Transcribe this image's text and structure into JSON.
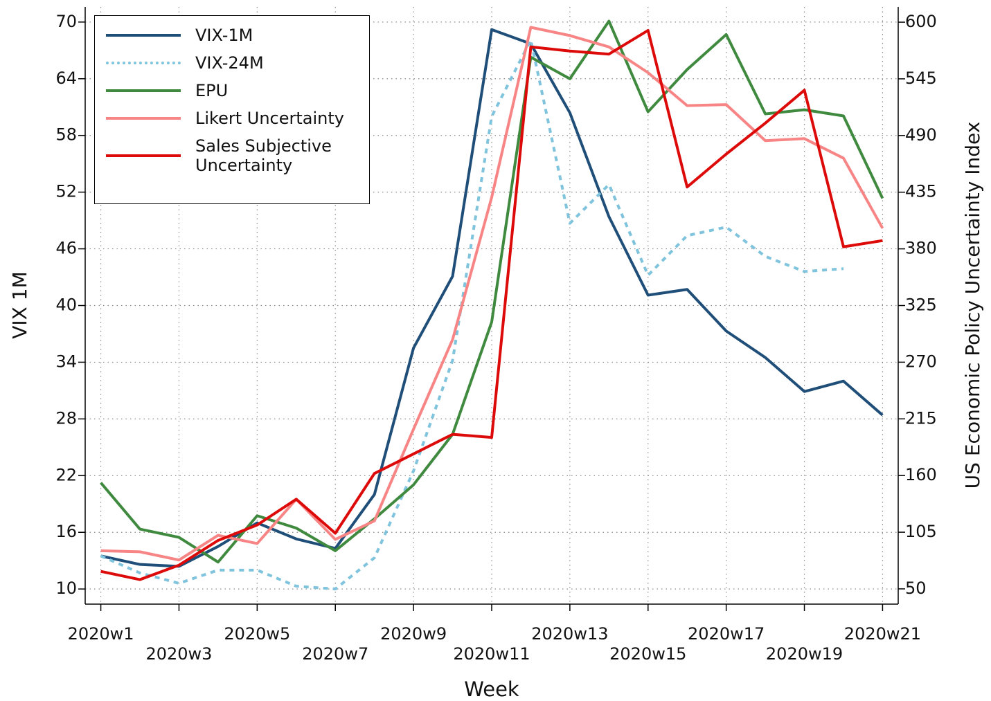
{
  "chart_data": {
    "type": "line",
    "x_label": "Week",
    "y_label": "VIX 1M",
    "y2_label": "US Economic Policy Uncertainty Index",
    "x": [
      1,
      2,
      3,
      4,
      5,
      6,
      7,
      8,
      9,
      10,
      11,
      12,
      13,
      14,
      15,
      16,
      17,
      18,
      19,
      20,
      21
    ],
    "xlim": [
      0.6,
      21.4
    ],
    "xticks": [
      {
        "value": 1,
        "label": "2020w1"
      },
      {
        "value": 3,
        "label": "2020w3"
      },
      {
        "value": 5,
        "label": "2020w5"
      },
      {
        "value": 7,
        "label": "2020w7"
      },
      {
        "value": 9,
        "label": "2020w9"
      },
      {
        "value": 11,
        "label": "2020w11"
      },
      {
        "value": 13,
        "label": "2020w13"
      },
      {
        "value": 15,
        "label": "2020w15"
      },
      {
        "value": 17,
        "label": "2020w17"
      },
      {
        "value": 19,
        "label": "2020w19"
      },
      {
        "value": 21,
        "label": "2020w21"
      }
    ],
    "ylim": [
      8.4,
      71.6
    ],
    "yticks": [
      10,
      16,
      22,
      28,
      34,
      40,
      46,
      52,
      58,
      64,
      70
    ],
    "y2lim": [
      35.2,
      614.8
    ],
    "y2ticks": [
      50,
      105,
      160,
      215,
      270,
      325,
      380,
      435,
      490,
      545,
      600
    ],
    "grid": true,
    "legend": "upper left",
    "series": [
      {
        "name": "VIX-1M",
        "color": "#1f4e79",
        "axis": "y",
        "dash": false,
        "values": [
          13.5,
          12.6,
          12.4,
          14.5,
          17.0,
          15.3,
          14.3,
          20.0,
          35.5,
          43.1,
          69.2,
          67.7,
          60.4,
          49.4,
          41.1,
          41.7,
          37.3,
          34.5,
          30.9,
          32.0,
          28.4
        ]
      },
      {
        "name": "VIX-24M",
        "color": "#7fc4dc",
        "axis": "y",
        "dash": true,
        "values": [
          13.5,
          11.7,
          10.6,
          12.0,
          12.0,
          10.3,
          10.0,
          13.3,
          22.5,
          34.2,
          60.0,
          68.1,
          48.7,
          52.8,
          43.2,
          47.4,
          48.3,
          45.2,
          43.6,
          43.9,
          null
        ]
      },
      {
        "name": "EPU",
        "color": "#3f8a3f",
        "axis": "y2",
        "dash": false,
        "values": [
          153,
          108,
          100,
          76,
          121,
          109,
          87,
          118,
          151,
          200,
          309,
          566,
          545,
          601,
          513,
          554,
          588,
          511,
          515,
          509,
          429
        ]
      },
      {
        "name": "Likert Uncertainty",
        "color": "#f88585",
        "axis": "y2",
        "dash": false,
        "values": [
          87,
          86,
          78,
          102,
          94,
          137,
          98,
          116,
          205,
          292,
          430,
          595,
          587,
          576,
          551,
          519,
          520,
          485,
          487,
          468,
          400
        ]
      },
      {
        "name": "Sales Subjective Uncertainty",
        "color": "#dd0a0a",
        "axis": "y2",
        "dash": false,
        "values": [
          67,
          59,
          73,
          97,
          112,
          137,
          104,
          162,
          181,
          200,
          197,
          576,
          572,
          569,
          592,
          440,
          472,
          502,
          534,
          382,
          388
        ]
      }
    ]
  }
}
